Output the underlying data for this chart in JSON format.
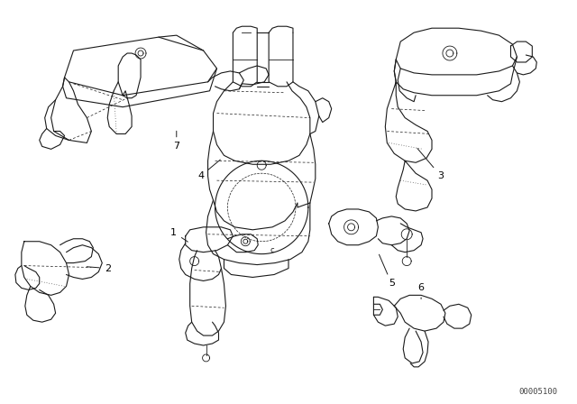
{
  "background_color": "#ffffff",
  "line_color": "#1a1a1a",
  "label_color": "#000000",
  "fig_width": 6.4,
  "fig_height": 4.48,
  "dpi": 100,
  "watermark": "00005100",
  "border_color": "#cccccc"
}
